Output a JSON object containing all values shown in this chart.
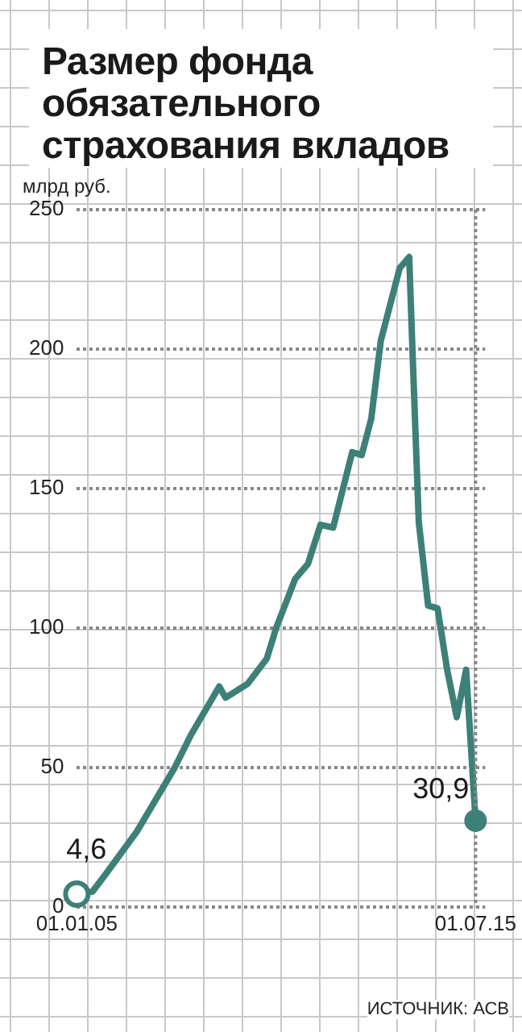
{
  "chart_data": {
    "type": "line",
    "title": "Размер фонда обязательного страхования вкладов",
    "ylabel": "млрд руб.",
    "x": [
      "2005-01",
      "2005-06",
      "2005-10",
      "2006-08",
      "2007-08",
      "2008-01",
      "2008-10",
      "2008-12",
      "2009-07",
      "2010-01",
      "2010-04",
      "2010-10",
      "2011-02",
      "2011-06",
      "2011-10",
      "2012-04",
      "2012-07",
      "2012-10",
      "2013-01",
      "2013-07",
      "2013-10",
      "2013-11",
      "2014-01",
      "2014-04",
      "2014-07",
      "2014-10",
      "2015-01",
      "2015-04",
      "2015-07"
    ],
    "series": [
      {
        "color": "#3d8078",
        "values": [
          4.6,
          5.5,
          11.5,
          27,
          50,
          61.5,
          79,
          75,
          80,
          89,
          100,
          117.6,
          123,
          137,
          136,
          163,
          162,
          175,
          203,
          229,
          233,
          200,
          138,
          108,
          107,
          85,
          68,
          85,
          30.9
        ]
      }
    ],
    "xlim": [
      "2005-01",
      "2015-10"
    ],
    "xticks": [
      {
        "value": "2005-01-01",
        "label": "01.01.05"
      },
      {
        "value": "2015-07-01",
        "label": "01.07.15"
      }
    ],
    "ylim": [
      0,
      250
    ],
    "yticks": [
      0,
      50,
      100,
      150,
      200,
      250
    ],
    "grid": "y",
    "line_style": "solid",
    "ref_lines": [
      {
        "axis": "x",
        "value": "2015-07-01",
        "label": null,
        "color": "#888888",
        "line_style": "dotted"
      }
    ],
    "annotations": [
      {
        "text": "4,6",
        "x": "2005-01",
        "y": 4.6
      },
      {
        "text": "30,9",
        "x": "2015-07",
        "y": 30.9
      },
      "ИСТОЧНИК: АСВ"
    ]
  }
}
